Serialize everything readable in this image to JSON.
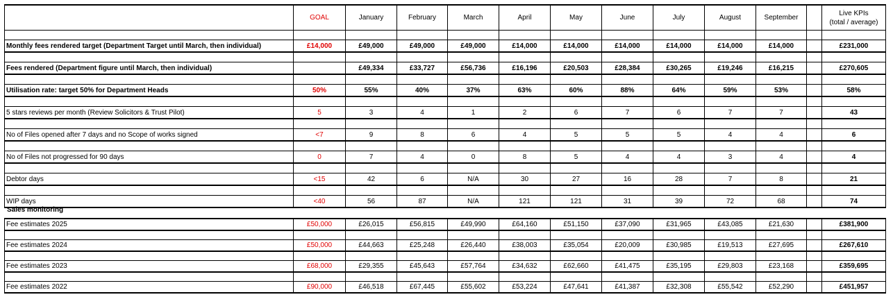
{
  "header": {
    "goal": "GOAL",
    "months": [
      "January",
      "February",
      "March",
      "April",
      "May",
      "June",
      "July",
      "August",
      "September"
    ],
    "live_line1": "Live KPIs",
    "live_line2": "(total / average)"
  },
  "rows": [
    {
      "label": "Monthly fees rendered target (Department Target until March, then individual)",
      "goal": "£14,000",
      "values": [
        "£49,000",
        "£49,000",
        "£49,000",
        "£14,000",
        "£14,000",
        "£14,000",
        "£14,000",
        "£14,000",
        "£14,000"
      ],
      "total": "£231,000",
      "bold": true
    },
    {
      "label": "Fees rendered (Department figure until March, then individual)",
      "goal": "",
      "values": [
        "£49,334",
        "£33,727",
        "£56,736",
        "£16,196",
        "£20,503",
        "£28,384",
        "£30,265",
        "£19,246",
        "£16,215"
      ],
      "total": "£270,605",
      "bold": true
    },
    {
      "label": "Utilisation rate: target 50% for Department Heads",
      "goal": "50%",
      "values": [
        "55%",
        "40%",
        "37%",
        "63%",
        "60%",
        "88%",
        "64%",
        "59%",
        "53%"
      ],
      "total": "58%",
      "bold": true
    },
    {
      "label": "5 stars reviews per month (Review Solicitors & Trust Pilot)",
      "goal": "5",
      "values": [
        "3",
        "4",
        "1",
        "2",
        "6",
        "7",
        "6",
        "7",
        "7"
      ],
      "total": "43",
      "bold": false
    },
    {
      "label": "No of Files opened after 7 days and no Scope of works signed",
      "goal": "<7",
      "values": [
        "9",
        "8",
        "6",
        "4",
        "5",
        "5",
        "5",
        "4",
        "4"
      ],
      "total": "6",
      "bold": false
    },
    {
      "label": "No of Files not progressed for 90 days",
      "goal": "0",
      "values": [
        "7",
        "4",
        "0",
        "8",
        "5",
        "4",
        "4",
        "3",
        "4"
      ],
      "total": "4",
      "bold": false
    },
    {
      "label": "Debtor days",
      "goal": "<15",
      "values": [
        "42",
        "6",
        "N/A",
        "30",
        "27",
        "16",
        "28",
        "7",
        "8"
      ],
      "total": "21",
      "bold": false
    },
    {
      "label": "WIP days",
      "goal": "<40",
      "values": [
        "56",
        "87",
        "N/A",
        "121",
        "121",
        "31",
        "39",
        "72",
        "68"
      ],
      "total": "74",
      "bold": false
    }
  ],
  "sales": {
    "title": "Sales monitoring",
    "rows": [
      {
        "label": "Fee estimates 2025",
        "goal": "£50,000",
        "values": [
          "£26,015",
          "£56,815",
          "£49,990",
          "£64,160",
          "£51,150",
          "£37,090",
          "£31,965",
          "£43,085",
          "£21,630"
        ],
        "total": "£381,900"
      },
      {
        "label": "Fee estimates 2024",
        "goal": "£50,000",
        "values": [
          "£44,663",
          "£25,248",
          "£26,440",
          "£38,003",
          "£35,054",
          "£20,009",
          "£30,985",
          "£19,513",
          "£27,695"
        ],
        "total": "£267,610"
      },
      {
        "label": "Fee estimates 2023",
        "goal": "£68,000",
        "values": [
          "£29,355",
          "£45,643",
          "£57,764",
          "£34,632",
          "£62,660",
          "£41,475",
          "£35,195",
          "£29,803",
          "£23,168"
        ],
        "total": "£359,695"
      },
      {
        "label": "Fee estimates 2022",
        "goal": "£90,000",
        "values": [
          "£46,518",
          "£67,445",
          "£55,602",
          "£53,224",
          "£47,641",
          "£41,387",
          "£32,308",
          "£55,542",
          "£52,290"
        ],
        "total": "£451,957"
      }
    ]
  },
  "colors": {
    "goal": "#e00000",
    "border": "#000000"
  }
}
